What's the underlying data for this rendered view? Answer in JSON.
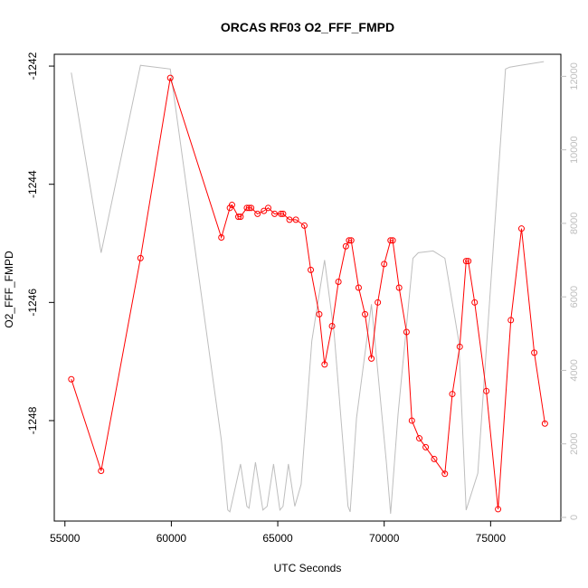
{
  "chart_data": {
    "type": "line",
    "title": "ORCAS RF03 O2_FFF_FMPD",
    "xlabel": "UTC Seconds",
    "ylabel": "O2_FFF_FMPD",
    "xlim": [
      54500,
      78300
    ],
    "ylim": [
      -1249.7,
      -1241.8
    ],
    "y2lim": [
      -100,
      12600
    ],
    "x_ticks": [
      55000,
      60000,
      65000,
      70000,
      75000
    ],
    "x_tick_labels": [
      "55000",
      "60000",
      "65000",
      "70000",
      "75000"
    ],
    "y_ticks": [
      -1242,
      -1244,
      -1246,
      -1248
    ],
    "y_tick_labels": [
      "-1242",
      "-1244",
      "-1246",
      "-1248"
    ],
    "y2_ticks": [
      0,
      2000,
      4000,
      6000,
      8000,
      10000,
      12000
    ],
    "y2_tick_labels": [
      "0",
      "2000",
      "4000",
      "6000",
      "8000",
      "10000",
      "12000"
    ],
    "grid": false,
    "series": [
      {
        "color": "#ff0000",
        "marker": "circle",
        "axis": "left",
        "x": [
          55300,
          56700,
          58550,
          59950,
          62350,
          62750,
          62850,
          63150,
          63250,
          63550,
          63650,
          63750,
          64050,
          64350,
          64550,
          64850,
          65150,
          65250,
          65550,
          65850,
          66250,
          66550,
          66950,
          67200,
          67550,
          67850,
          68200,
          68350,
          68450,
          68800,
          69100,
          69400,
          69700,
          70000,
          70300,
          70400,
          70700,
          71050,
          71300,
          71650,
          71950,
          72350,
          72850,
          73200,
          73550,
          73850,
          73950,
          74250,
          74800,
          75350,
          75950,
          76450,
          77050,
          77550
        ],
        "y": [
          -1247.3,
          -1248.85,
          -1245.25,
          -1242.2,
          -1244.9,
          -1244.4,
          -1244.35,
          -1244.55,
          -1244.55,
          -1244.4,
          -1244.4,
          -1244.4,
          -1244.5,
          -1244.45,
          -1244.4,
          -1244.5,
          -1244.5,
          -1244.5,
          -1244.6,
          -1244.6,
          -1244.7,
          -1245.45,
          -1246.2,
          -1247.05,
          -1246.4,
          -1245.65,
          -1245.05,
          -1244.95,
          -1244.95,
          -1245.75,
          -1246.2,
          -1246.95,
          -1246.0,
          -1245.35,
          -1244.95,
          -1244.95,
          -1245.75,
          -1246.5,
          -1248.0,
          -1248.3,
          -1248.45,
          -1248.65,
          -1248.9,
          -1247.55,
          -1246.75,
          -1245.3,
          -1245.3,
          -1246.0,
          -1247.5,
          -1249.5,
          -1246.3,
          -1244.75,
          -1246.85,
          -1248.05
        ]
      },
      {
        "color": "#bebebe",
        "marker": "none",
        "axis": "right",
        "x": [
          55300,
          56700,
          58550,
          59950,
          62350,
          62650,
          62750,
          63250,
          63550,
          63650,
          63950,
          64300,
          64500,
          64800,
          65100,
          65250,
          65500,
          65800,
          66100,
          66600,
          67200,
          67650,
          68300,
          68400,
          68700,
          69400,
          70100,
          70300,
          70650,
          71350,
          71600,
          72300,
          72850,
          73500,
          73850,
          74400,
          75700,
          75900,
          76400,
          77500
        ],
        "y": [
          12100,
          7200,
          12300,
          12200,
          2100,
          200,
          150,
          1450,
          300,
          250,
          1500,
          200,
          300,
          1450,
          200,
          300,
          1450,
          300,
          900,
          4800,
          7000,
          5000,
          300,
          150,
          2700,
          5800,
          1500,
          100,
          2800,
          7050,
          7200,
          7250,
          7050,
          4800,
          200,
          1200,
          12200,
          12250,
          12300,
          12400
        ]
      }
    ]
  }
}
